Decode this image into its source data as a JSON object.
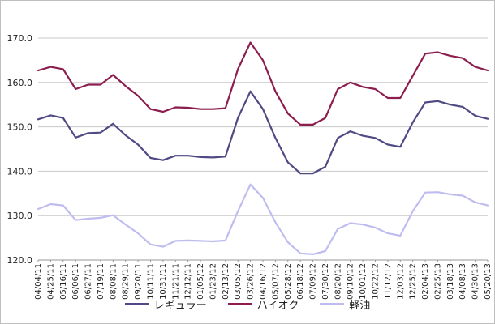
{
  "chart_data": {
    "type": "line",
    "ylim": [
      120,
      170
    ],
    "yticks": [
      "120.0",
      "130.0",
      "140.0",
      "150.0",
      "160.0",
      "170.0"
    ],
    "grid": true,
    "legend_placement": "bottom-center",
    "categories": [
      "04/04/11",
      "04/25/11",
      "05/16/11",
      "06/06/11",
      "06/27/11",
      "07/19/11",
      "08/08/11",
      "08/29/11",
      "09/20/11",
      "10/11/11",
      "10/31/11",
      "11/21/11",
      "12/12/11",
      "01/05/12",
      "01/23/12",
      "02/13/12",
      "03/05/12",
      "03/26/12",
      "04/16/12",
      "05/07/12",
      "05/28/12",
      "06/18/12",
      "07/09/12",
      "07/30/12",
      "08/20/12",
      "09/10/12",
      "10/01/12",
      "10/22/12",
      "11/12/12",
      "12/03/12",
      "12/25/12",
      "02/04/13",
      "02/25/13",
      "03/18/13",
      "04/08/13",
      "04/30/13",
      "05/20/13"
    ],
    "series": [
      {
        "name": "レギュラー",
        "color": "#4f4a84",
        "values": [
          151.7,
          152.6,
          152.0,
          147.6,
          148.6,
          148.7,
          150.7,
          148.1,
          146.0,
          143.0,
          142.5,
          143.5,
          143.5,
          143.2,
          143.1,
          143.3,
          152.0,
          158.0,
          154.0,
          147.5,
          142.0,
          139.5,
          139.5,
          141.0,
          147.5,
          149.0,
          148.0,
          147.5,
          146.0,
          145.5,
          151.0,
          155.5,
          155.8,
          155.0,
          154.5,
          152.5,
          151.8
        ]
      },
      {
        "name": "ハイオク",
        "color": "#8c1d4f",
        "values": [
          162.7,
          163.5,
          163.0,
          158.5,
          159.5,
          159.5,
          161.7,
          159.2,
          157.0,
          154.0,
          153.4,
          154.4,
          154.3,
          154.0,
          154.0,
          154.2,
          163.0,
          169.0,
          165.0,
          158.0,
          153.0,
          150.5,
          150.5,
          152.0,
          158.5,
          160.0,
          159.0,
          158.5,
          156.5,
          156.5,
          161.5,
          166.5,
          166.8,
          166.0,
          165.5,
          163.5,
          162.7
        ]
      },
      {
        "name": "軽油",
        "color": "#bfbdf0",
        "values": [
          131.5,
          132.6,
          132.3,
          129.0,
          129.3,
          129.5,
          130.1,
          128.0,
          126.0,
          123.5,
          123.0,
          124.3,
          124.4,
          124.3,
          124.2,
          124.4,
          131.0,
          137.0,
          134.0,
          128.5,
          124.0,
          121.5,
          121.3,
          122.0,
          127.0,
          128.3,
          128.0,
          127.3,
          126.0,
          125.5,
          131.0,
          135.2,
          135.3,
          134.8,
          134.5,
          133.0,
          132.3
        ]
      }
    ]
  }
}
